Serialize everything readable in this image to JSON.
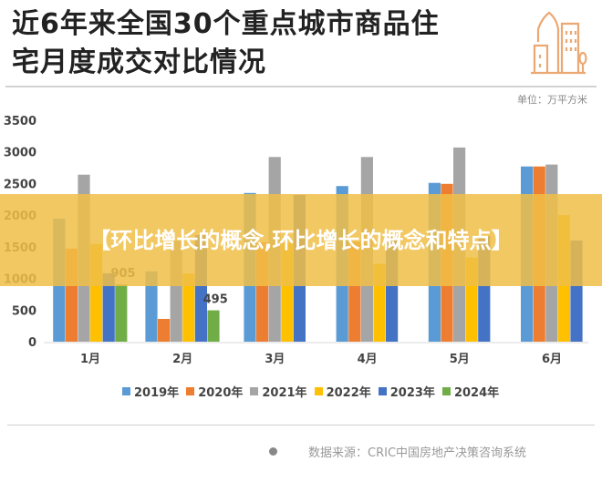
{
  "header": {
    "title_line1": "近6年来全国30个重点城市商品住",
    "title_line2": "宅月度成交对比情况",
    "icon": "building-icon",
    "unit": "单位：万平方米"
  },
  "banner": {
    "text": "【环比增长的概念,环比增长的概念和特点】"
  },
  "footer": {
    "source": "数据来源：CRIC中国房地产决策咨询系统"
  },
  "chart_data": {
    "type": "bar",
    "title": "近6年来全国30个重点城市商品住宅月度成交对比情况",
    "unit": "万平方米",
    "xlabel": "",
    "ylabel": "",
    "categories": [
      "1月",
      "2月",
      "3月",
      "4月",
      "5月",
      "6月"
    ],
    "ylim": [
      0,
      3500
    ],
    "yticks": [
      0,
      500,
      1000,
      1500,
      2000,
      2500,
      3000,
      3500
    ],
    "grid": false,
    "legend_position": "bottom",
    "series": [
      {
        "name": "2019年",
        "color": "#5b9bd5",
        "values": [
          1945,
          1110,
          2350,
          2460,
          2510,
          2770
        ]
      },
      {
        "name": "2020年",
        "color": "#ed7d31",
        "values": [
          1470,
          360,
          1570,
          1580,
          2495,
          2770
        ]
      },
      {
        "name": "2021年",
        "color": "#a5a5a5",
        "values": [
          2640,
          1600,
          2920,
          2920,
          3070,
          2800
        ]
      },
      {
        "name": "2022年",
        "color": "#ffc000",
        "values": [
          1545,
          1080,
          1560,
          1230,
          1330,
          2000
        ]
      },
      {
        "name": "2023年",
        "color": "#4472c4",
        "values": [
          1080,
          1685,
          2320,
          1660,
          1670,
          1600
        ]
      },
      {
        "name": "2024年",
        "color": "#70ad47",
        "values": [
          905,
          495,
          null,
          null,
          null,
          null
        ]
      }
    ],
    "data_labels": [
      {
        "series": "2024年",
        "category": "1月",
        "text": "905"
      },
      {
        "series": "2024年",
        "category": "2月",
        "text": "495"
      }
    ]
  }
}
